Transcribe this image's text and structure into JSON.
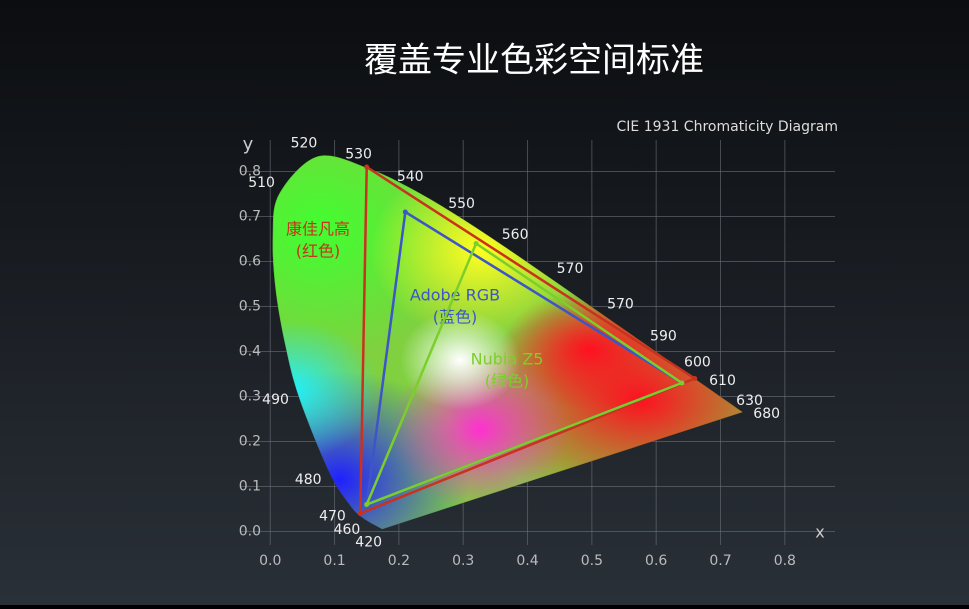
{
  "chart_data": {
    "type": "gamut",
    "title": "覆盖专业色彩空间标准",
    "subtitle": "CIE 1931 Chromaticity Diagram",
    "x_label": "x",
    "y_label": "y",
    "xlim": [
      -0.047,
      0.878
    ],
    "ylim": [
      -0.03,
      0.87
    ],
    "xticks": [
      {
        "value": 0,
        "label": "0.0"
      },
      {
        "value": 0.1,
        "label": "0.1"
      },
      {
        "value": 0.2,
        "label": "0.2"
      },
      {
        "value": 0.3,
        "label": "0.3"
      },
      {
        "value": 0.4,
        "label": "0.4"
      },
      {
        "value": 0.5,
        "label": "0.5"
      },
      {
        "value": 0.6,
        "label": "0.6"
      },
      {
        "value": 0.7,
        "label": "0.7"
      },
      {
        "value": 0.8,
        "label": "0.8"
      }
    ],
    "yticks": [
      {
        "value": 0,
        "label": "0.0"
      },
      {
        "value": 0.1,
        "label": "0.1"
      },
      {
        "value": 0.2,
        "label": "0.2"
      },
      {
        "value": 0.3,
        "label": "0.3"
      },
      {
        "value": 0.4,
        "label": "0.4"
      },
      {
        "value": 0.5,
        "label": "0.5"
      },
      {
        "value": 0.6,
        "label": "0.6"
      },
      {
        "value": 0.7,
        "label": "0.7"
      },
      {
        "value": 0.8,
        "label": "0.8"
      }
    ],
    "grid": true,
    "locus": {
      "labels": [
        "420",
        "460",
        "470",
        "480",
        "490",
        null,
        null,
        null,
        "510",
        "520",
        "530",
        "540",
        "550",
        "560",
        "570",
        "570",
        "590",
        "600",
        "610",
        "630",
        "680"
      ],
      "x": [
        0.1741,
        0.144,
        0.1241,
        0.0913,
        0.0454,
        0.0235,
        0.0082,
        0.0039,
        0.0139,
        0.0743,
        0.1547,
        0.2296,
        0.3016,
        0.3731,
        0.4441,
        0.5125,
        0.5752,
        0.627,
        0.6658,
        0.7079,
        0.7347
      ],
      "y": [
        0.005,
        0.0297,
        0.0578,
        0.1327,
        0.295,
        0.4127,
        0.5384,
        0.6548,
        0.7502,
        0.8338,
        0.8059,
        0.7543,
        0.6923,
        0.6245,
        0.5547,
        0.4866,
        0.4242,
        0.3725,
        0.334,
        0.292,
        0.2653
      ]
    },
    "series": [
      {
        "name": "康佳凡高",
        "note": "(红色)",
        "color": "#c8321e",
        "x": [
          0.15,
          0.66,
          0.14
        ],
        "y": [
          0.81,
          0.34,
          0.04
        ]
      },
      {
        "name": "Adobe RGB",
        "note": "(蓝色)",
        "color": "#3d55c8",
        "x": [
          0.21,
          0.64,
          0.15
        ],
        "y": [
          0.71,
          0.33,
          0.06
        ]
      },
      {
        "name": "Nubia Z5",
        "note": "(绿色)",
        "color": "#7ccf2a",
        "x": [
          0.32,
          0.64,
          0.15
        ],
        "y": [
          0.64,
          0.33,
          0.06
        ]
      }
    ]
  }
}
